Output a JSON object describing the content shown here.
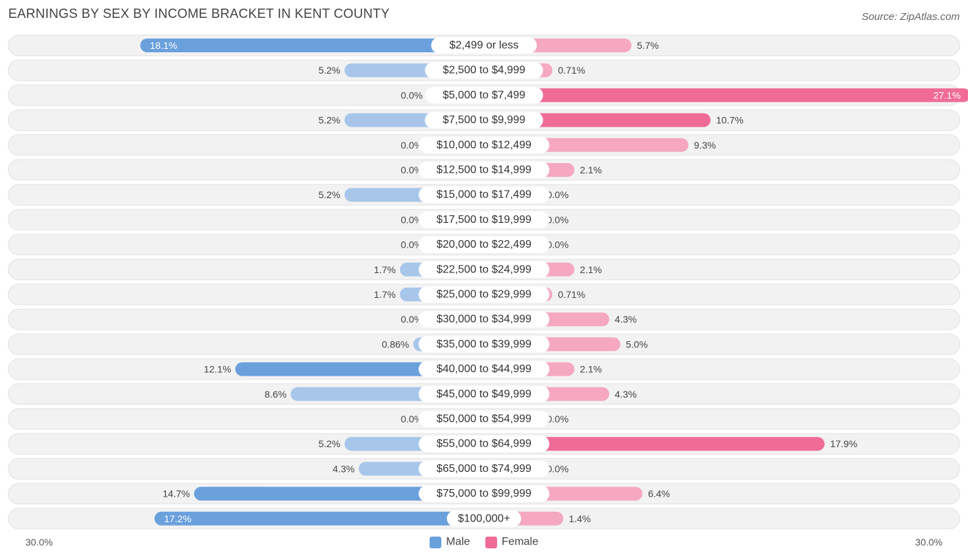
{
  "title": "EARNINGS BY SEX BY INCOME BRACKET IN KENT COUNTY",
  "source": "Source: ZipAtlas.com",
  "axis": {
    "left_label": "30.0%",
    "right_label": "30.0%"
  },
  "legend": {
    "male_label": "Male",
    "female_label": "Female"
  },
  "colors": {
    "male_strong": "#6aa0dc",
    "male_light": "#a8c6ea",
    "female_strong": "#f06b96",
    "female_light": "#f5a8c0",
    "row_bg": "#f2f2f2",
    "row_border": "#e2e2e2"
  },
  "chart_data": {
    "type": "bar",
    "orientation": "horizontal-diverging",
    "title": "EARNINGS BY SEX BY INCOME BRACKET IN KENT COUNTY",
    "xlim": [
      -30,
      30
    ],
    "categories": [
      "$2,499 or less",
      "$2,500 to $4,999",
      "$5,000 to $7,499",
      "$7,500 to $9,999",
      "$10,000 to $12,499",
      "$12,500 to $14,999",
      "$15,000 to $17,499",
      "$17,500 to $19,999",
      "$20,000 to $22,499",
      "$22,500 to $24,999",
      "$25,000 to $29,999",
      "$30,000 to $34,999",
      "$35,000 to $39,999",
      "$40,000 to $44,999",
      "$45,000 to $49,999",
      "$50,000 to $54,999",
      "$55,000 to $64,999",
      "$65,000 to $74,999",
      "$75,000 to $99,999",
      "$100,000+"
    ],
    "series": [
      {
        "name": "Male",
        "values": [
          18.1,
          5.2,
          0.0,
          5.2,
          0.0,
          0.0,
          5.2,
          0.0,
          0.0,
          1.7,
          1.7,
          0.0,
          0.86,
          12.1,
          8.6,
          0.0,
          5.2,
          4.3,
          14.7,
          17.2
        ],
        "labels": [
          "18.1%",
          "5.2%",
          "0.0%",
          "5.2%",
          "0.0%",
          "0.0%",
          "5.2%",
          "0.0%",
          "0.0%",
          "1.7%",
          "1.7%",
          "0.0%",
          "0.86%",
          "12.1%",
          "8.6%",
          "0.0%",
          "5.2%",
          "4.3%",
          "14.7%",
          "17.2%"
        ]
      },
      {
        "name": "Female",
        "values": [
          5.7,
          0.71,
          27.1,
          10.7,
          9.3,
          2.1,
          0.0,
          0.0,
          0.0,
          2.1,
          0.71,
          4.3,
          5.0,
          2.1,
          4.3,
          0.0,
          17.9,
          0.0,
          6.4,
          1.4
        ],
        "labels": [
          "5.7%",
          "0.71%",
          "27.1%",
          "10.7%",
          "9.3%",
          "2.1%",
          "0.0%",
          "0.0%",
          "0.0%",
          "2.1%",
          "0.71%",
          "4.3%",
          "5.0%",
          "2.1%",
          "4.3%",
          "0.0%",
          "17.9%",
          "0.0%",
          "6.4%",
          "1.4%"
        ]
      }
    ]
  }
}
